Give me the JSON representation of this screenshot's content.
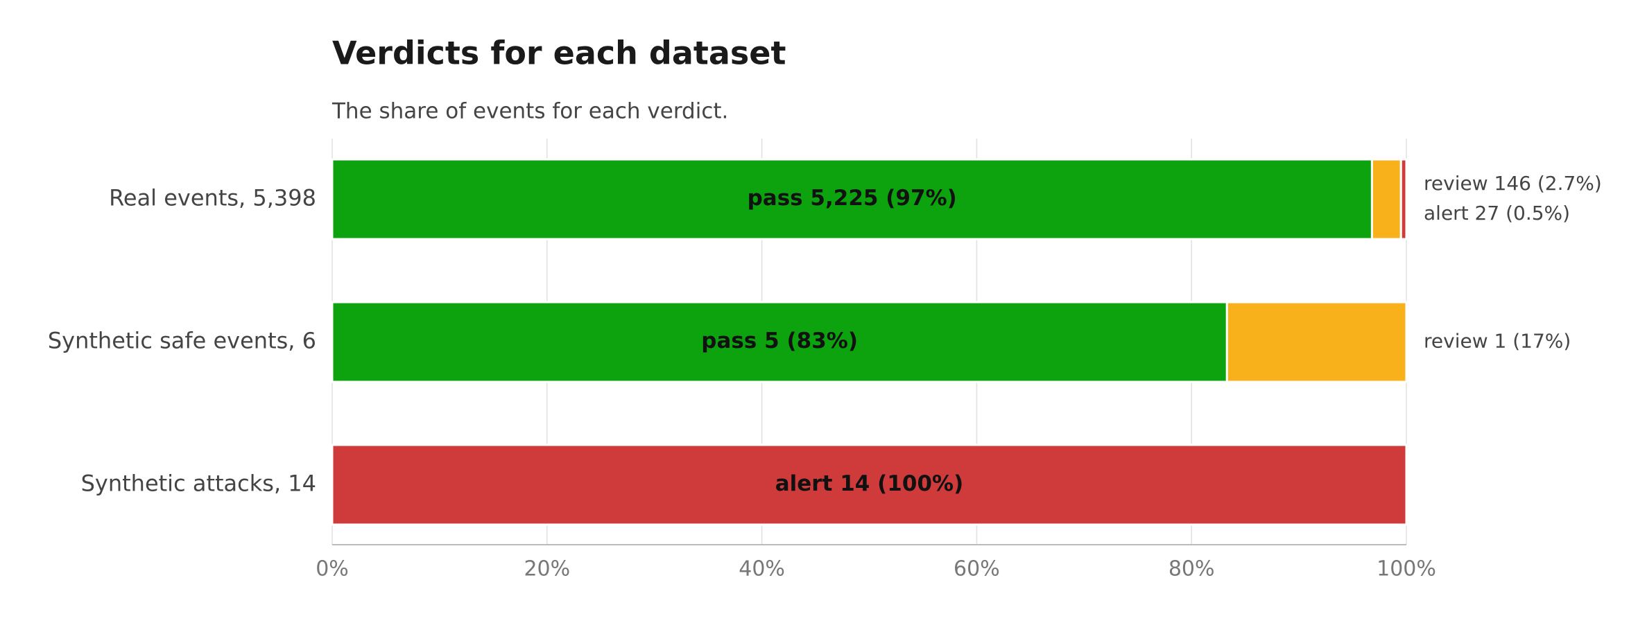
{
  "chart_data": {
    "type": "stacked-bar-horizontal",
    "title": "Verdicts for each dataset",
    "subtitle": "The share of events for each verdict.",
    "categories": [
      "Real events, 5,398",
      "Synthetic safe events, 6",
      "Synthetic attacks, 14"
    ],
    "series": [
      {
        "name": "pass",
        "color": "#0ca30f",
        "values": [
          96.8,
          83.3,
          null
        ],
        "value_labels": [
          "pass  5,225  (97%)",
          "pass  5  (83%)",
          null
        ]
      },
      {
        "name": "review",
        "color": "#f8b11b",
        "values": [
          2.7,
          16.7,
          null
        ],
        "value_labels": [
          "review 146 (2.7%)",
          "review 1 (17%)",
          null
        ]
      },
      {
        "name": "alert",
        "color": "#cf3b3b",
        "values": [
          0.5,
          null,
          100
        ],
        "value_labels": [
          "alert 27 (0.5%)",
          null,
          "alert  14  (100%)"
        ]
      }
    ],
    "xlim": [
      0,
      100
    ],
    "xticks": [
      {
        "value": 0,
        "label": "0%"
      },
      {
        "value": 20,
        "label": "20%"
      },
      {
        "value": 40,
        "label": "40%"
      },
      {
        "value": 60,
        "label": "60%"
      },
      {
        "value": 80,
        "label": "80%"
      },
      {
        "value": 100,
        "label": "100%"
      }
    ],
    "grid": true
  }
}
